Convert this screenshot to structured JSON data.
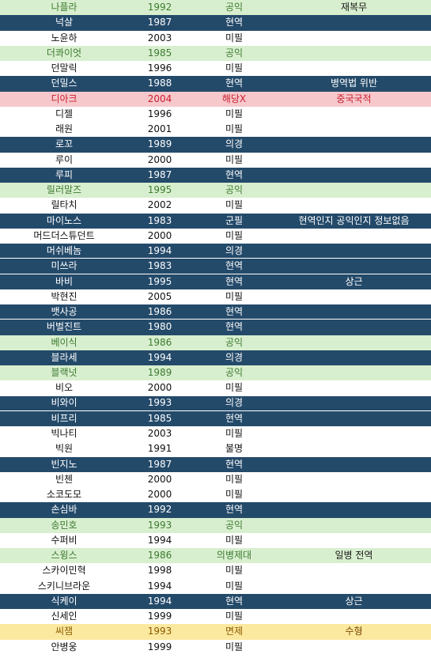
{
  "colors": {
    "navy": "#244a6a",
    "green": "#d8efcf",
    "pink": "#f6c8cc",
    "yellow": "#fce9a0",
    "white": "#ffffff"
  },
  "rows": [
    {
      "name": "나플라",
      "year": "1992",
      "status": "공익",
      "note": "재복무",
      "style": "green"
    },
    {
      "name": "넉살",
      "year": "1987",
      "status": "현역",
      "note": "",
      "style": "navy"
    },
    {
      "name": "노윤하",
      "year": "2003",
      "status": "미필",
      "note": "",
      "style": "white"
    },
    {
      "name": "더콰이엇",
      "year": "1985",
      "status": "공익",
      "note": "",
      "style": "green"
    },
    {
      "name": "던말릭",
      "year": "1996",
      "status": "미필",
      "note": "",
      "style": "white"
    },
    {
      "name": "던밀스",
      "year": "1988",
      "status": "현역",
      "note": "병역법 위반",
      "style": "navy"
    },
    {
      "name": "디아크",
      "year": "2004",
      "status": "해당X",
      "note": "중국국적",
      "style": "pink"
    },
    {
      "name": "디젤",
      "year": "1996",
      "status": "미필",
      "note": "",
      "style": "white"
    },
    {
      "name": "래원",
      "year": "2001",
      "status": "미필",
      "note": "",
      "style": "white"
    },
    {
      "name": "로꼬",
      "year": "1989",
      "status": "의경",
      "note": "",
      "style": "navy"
    },
    {
      "name": "루이",
      "year": "2000",
      "status": "미필",
      "note": "",
      "style": "white"
    },
    {
      "name": "루피",
      "year": "1987",
      "status": "현역",
      "note": "",
      "style": "navy"
    },
    {
      "name": "릴러말즈",
      "year": "1995",
      "status": "공익",
      "note": "",
      "style": "green"
    },
    {
      "name": "릴타치",
      "year": "2002",
      "status": "미필",
      "note": "",
      "style": "white"
    },
    {
      "name": "마이노스",
      "year": "1983",
      "status": "군필",
      "note": "현역인지 공익인지 정보없음",
      "style": "navy"
    },
    {
      "name": "머드더스튜던트",
      "year": "2000",
      "status": "미필",
      "note": "",
      "style": "white"
    },
    {
      "name": "머쉬베놈",
      "year": "1994",
      "status": "의경",
      "note": "",
      "style": "navy"
    },
    {
      "name": "미쓰라",
      "year": "1983",
      "status": "현역",
      "note": "",
      "style": "navy"
    },
    {
      "name": "바비",
      "year": "1995",
      "status": "현역",
      "note": "상근",
      "style": "navy"
    },
    {
      "name": "박현진",
      "year": "2005",
      "status": "미필",
      "note": "",
      "style": "white"
    },
    {
      "name": "뱃사공",
      "year": "1986",
      "status": "현역",
      "note": "",
      "style": "navy"
    },
    {
      "name": "버벌진트",
      "year": "1980",
      "status": "현역",
      "note": "",
      "style": "navy"
    },
    {
      "name": "베이식",
      "year": "1986",
      "status": "공익",
      "note": "",
      "style": "green"
    },
    {
      "name": "블라세",
      "year": "1994",
      "status": "의경",
      "note": "",
      "style": "navy"
    },
    {
      "name": "블랙넛",
      "year": "1989",
      "status": "공익",
      "note": "",
      "style": "green"
    },
    {
      "name": "비오",
      "year": "2000",
      "status": "미필",
      "note": "",
      "style": "white"
    },
    {
      "name": "비와이",
      "year": "1993",
      "status": "의경",
      "note": "",
      "style": "navy"
    },
    {
      "name": "비프리",
      "year": "1985",
      "status": "현역",
      "note": "",
      "style": "navy"
    },
    {
      "name": "빅나티",
      "year": "2003",
      "status": "미필",
      "note": "",
      "style": "white"
    },
    {
      "name": "빅원",
      "year": "1991",
      "status": "불명",
      "note": "",
      "style": "white"
    },
    {
      "name": "빈지노",
      "year": "1987",
      "status": "현역",
      "note": "",
      "style": "navy"
    },
    {
      "name": "빈첸",
      "year": "2000",
      "status": "미필",
      "note": "",
      "style": "white"
    },
    {
      "name": "소코도모",
      "year": "2000",
      "status": "미필",
      "note": "",
      "style": "white"
    },
    {
      "name": "손심바",
      "year": "1992",
      "status": "현역",
      "note": "",
      "style": "navy"
    },
    {
      "name": "송민호",
      "year": "1993",
      "status": "공익",
      "note": "",
      "style": "green"
    },
    {
      "name": "수퍼비",
      "year": "1994",
      "status": "미필",
      "note": "",
      "style": "white"
    },
    {
      "name": "스윙스",
      "year": "1986",
      "status": "의병제대",
      "note": "일병 전역",
      "style": "green"
    },
    {
      "name": "스카이민혁",
      "year": "1998",
      "status": "미필",
      "note": "",
      "style": "white"
    },
    {
      "name": "스키니브라운",
      "year": "1994",
      "status": "미필",
      "note": "",
      "style": "white"
    },
    {
      "name": "식케이",
      "year": "1994",
      "status": "현역",
      "note": "상근",
      "style": "navy"
    },
    {
      "name": "신세인",
      "year": "1999",
      "status": "미필",
      "note": "",
      "style": "white"
    },
    {
      "name": "씨잼",
      "year": "1993",
      "status": "면제",
      "note": "수형",
      "style": "yellow"
    },
    {
      "name": "안병웅",
      "year": "1999",
      "status": "미필",
      "note": "",
      "style": "white"
    }
  ]
}
